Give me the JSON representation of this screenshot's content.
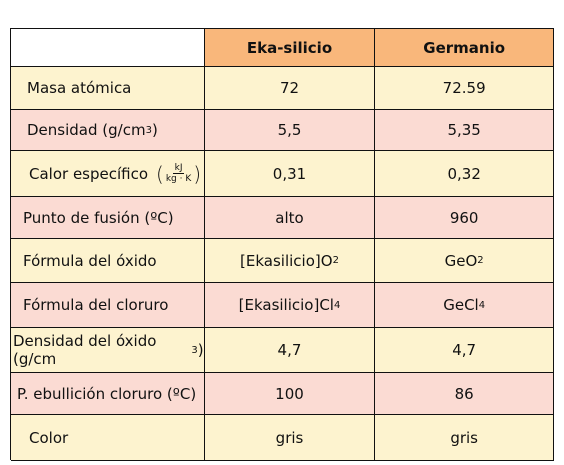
{
  "columns": [
    "",
    "Eka-silicio",
    "Germanio"
  ],
  "rows": [
    {
      "label": "Masa atómica",
      "eka": "72",
      "ge": "72.59",
      "style": "yellow"
    },
    {
      "label_main": "Densidad (g/cm",
      "label_sup": "3",
      "label_tail": ")",
      "eka": "5,5",
      "ge": "5,35",
      "style": "pink"
    },
    {
      "label": "Calor específico",
      "unit_num": "kJ",
      "unit_den": "kg · K",
      "eka": "0,31",
      "ge": "0,32",
      "style": "yellow"
    },
    {
      "label": "Punto de fusión (ºC)",
      "eka": "alto",
      "ge": "960",
      "style": "pink"
    },
    {
      "label": "Fórmula del óxido",
      "eka_main": "[Ekasilicio]O",
      "eka_sub": "2",
      "ge_main": "GeO",
      "ge_sub": "2",
      "style": "yellow"
    },
    {
      "label": "Fórmula del cloruro",
      "eka_main": "[Ekasilicio]Cl",
      "eka_sub": "4",
      "ge_main": "GeCl",
      "ge_sub": "4",
      "style": "pink"
    },
    {
      "label_main": "Densidad del óxido (g/cm",
      "label_sup": "3",
      "label_tail": ")",
      "eka": "4,7",
      "ge": "4,7",
      "style": "yellow"
    },
    {
      "label": "P. ebullición cloruro (ºC)",
      "eka": "100",
      "ge": "86",
      "style": "pink"
    },
    {
      "label": "Color",
      "eka": "gris",
      "ge": "gris",
      "style": "yellow"
    }
  ],
  "colors": {
    "header": "#f9b77b",
    "row_yellow": "#fdf3cf",
    "row_pink": "#fbdbd3"
  }
}
